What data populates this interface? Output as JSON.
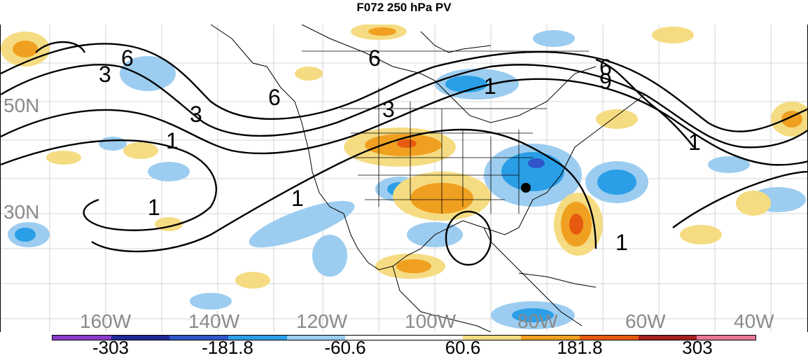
{
  "title": "F072 250 hPa PV",
  "latitude_labels": [
    "50N",
    "30N"
  ],
  "longitude_labels": [
    "160W",
    "140W",
    "120W",
    "100W",
    "80W",
    "60W",
    "40W"
  ],
  "contour_labels": [
    "3",
    "6",
    "6",
    "3",
    "1",
    "1",
    "6",
    "3",
    "1",
    "6",
    "9",
    "1",
    "1",
    "1"
  ],
  "colorbar": {
    "colors": [
      "#8a3cc8",
      "#1e2a96",
      "#2f55c8",
      "#2a9ee6",
      "#9ccdf0",
      "#ffffff",
      "#ffffff",
      "#f5dc82",
      "#f0a020",
      "#e65a10",
      "#a52020",
      "#e67896"
    ],
    "labels": [
      "-303",
      "-181.8",
      "-60.6",
      "60.6",
      "181.8",
      "303"
    ]
  },
  "marker": "storm-center-dot"
}
